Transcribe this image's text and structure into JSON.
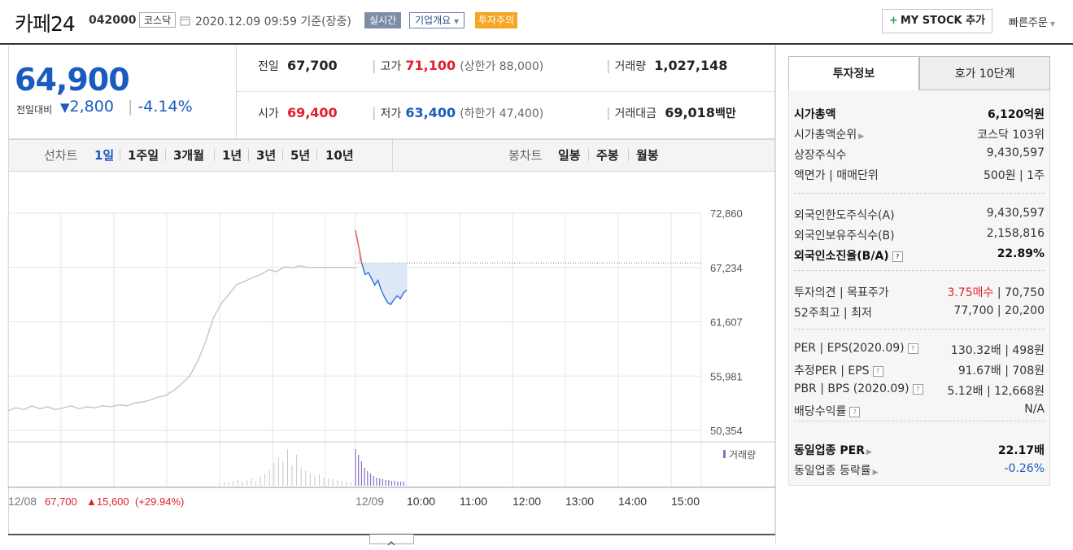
{
  "header": {
    "name": "카페24",
    "code": "042000",
    "market": "코스닥",
    "datetime": "2020.12.09 09:59",
    "basis": "기준(장중)",
    "realtime_tag": "실시간",
    "corp_info": "기업개요",
    "warning_tag": "투자주의",
    "mystock_label": "MY STOCK 추가",
    "quick_order": "빠른주문"
  },
  "price": {
    "current": "64,900",
    "change_label": "전일대비",
    "change_amount": "2,800",
    "change_pct": "-4.14%"
  },
  "quote": {
    "prev_label": "전일",
    "prev": "67,700",
    "high_label": "고가",
    "high": "71,100",
    "upper_limit": "(상한가 88,000)",
    "volume_label": "거래량",
    "volume": "1,027,148",
    "open_label": "시가",
    "open": "69,400",
    "low_label": "저가",
    "low": "63,400",
    "lower_limit": "(하한가 47,400)",
    "amount_label": "거래대금",
    "amount": "69,018",
    "amount_unit": "백만"
  },
  "nav": {
    "line_label": "선차트",
    "periods": [
      "1일",
      "1주일",
      "3개월",
      "1년",
      "3년",
      "5년",
      "10년"
    ],
    "candle_label": "봉차트",
    "candles": [
      "일봉",
      "주봉",
      "월봉"
    ]
  },
  "chart_data": {
    "type": "line",
    "y_ticks": [
      "72,860",
      "67,234",
      "61,607",
      "55,981",
      "50,354"
    ],
    "ylim": [
      50354,
      72860
    ],
    "ref_price": 67700,
    "x_labels": [
      "12/08",
      "12/09",
      "10:00",
      "11:00",
      "12:00",
      "13:00",
      "14:00",
      "15:00"
    ],
    "volume_label": "거래량",
    "prev_day_summary": {
      "date": "12/08",
      "close": "67,700",
      "change": "▲15,600",
      "pct": "(+29.94%)"
    },
    "series": [
      {
        "values": [
          52400,
          52700,
          52500,
          52900,
          52600,
          52800,
          52500,
          52700,
          52900,
          52600,
          52800,
          52700,
          52900,
          52800,
          53000,
          52900,
          53200,
          53300,
          53500,
          53800,
          54000,
          54500,
          55200,
          56000,
          57500,
          59500,
          62000,
          63500,
          64500,
          65500,
          65800,
          66200,
          66500,
          67000,
          66800,
          67300,
          67200,
          67400,
          67234,
          67234,
          67234,
          67234,
          67234,
          67234,
          67234
        ]
      },
      {
        "values": [
          71100,
          69400,
          67600,
          66500,
          66700,
          66100,
          65400,
          65900,
          64900,
          64200,
          63600,
          63400,
          63900,
          64300,
          64000,
          64600,
          64900
        ]
      }
    ],
    "vol_prev": [
      3,
      5,
      4,
      6,
      8,
      5,
      7,
      9,
      6,
      12,
      15,
      20,
      28,
      35,
      30,
      45,
      25,
      38,
      22,
      18,
      15,
      12,
      14,
      10,
      9,
      8,
      7,
      6,
      5,
      4
    ],
    "vol_today": [
      45,
      38,
      30,
      22,
      18,
      15,
      12,
      10,
      9,
      8,
      7,
      7,
      6,
      6,
      5,
      5,
      5
    ]
  },
  "invest": {
    "tab_info": "투자정보",
    "tab_hoga": "호가 10단계",
    "rows1": [
      {
        "l": "시가총액",
        "r": "6,120억원",
        "b": true
      },
      {
        "l": "시가총액순위",
        "r": "코스닥 103위"
      },
      {
        "l": "상장주식수",
        "r": "9,430,597"
      },
      {
        "l": "액면가 | 매매단위",
        "r": "500원 | 1주"
      }
    ],
    "rows2": [
      {
        "l": "외국인한도주식수(A)",
        "r": "9,430,597"
      },
      {
        "l": "외국인보유주식수(B)",
        "r": "2,158,816"
      },
      {
        "l": "외국인소진율(B/A)",
        "r": "22.89%",
        "b": true
      }
    ],
    "rows3": [
      {
        "l": "투자의견 | 목표주가",
        "r1": "3.75매수",
        "r2": " | 70,750"
      },
      {
        "l": "52주최고 | 최저",
        "r": "77,700 | 20,200"
      }
    ],
    "rows4": [
      {
        "l": "PER | EPS(2020.09)",
        "r": "130.32배 | 498원"
      },
      {
        "l": "추정PER | EPS",
        "r": "91.67배 | 708원"
      },
      {
        "l": "PBR | BPS (2020.09)",
        "r": "5.12배 | 12,668원"
      },
      {
        "l": "배당수익률",
        "r": "N/A"
      }
    ],
    "rows5": [
      {
        "l": "동일업종 PER",
        "r": "22.17배",
        "b": true
      },
      {
        "l": "동일업종 등락률",
        "r": "-0.26%"
      }
    ]
  }
}
